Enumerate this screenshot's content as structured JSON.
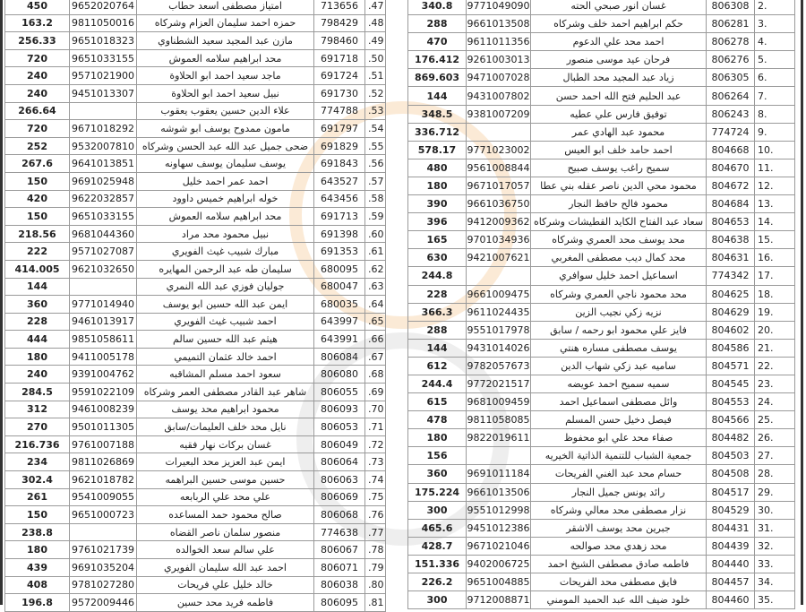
{
  "colors": {
    "border": "#9a9a9a",
    "text": "#222222",
    "watermark": "#f0a040"
  },
  "left_table": {
    "rows": [
      {
        "index": ".47",
        "id": "713656",
        "name": "امتياز مصطفى اسعد حطاب",
        "phone": "9652020764",
        "amount": "450"
      },
      {
        "index": ".48",
        "id": "798429",
        "name": "حمزه احمد سليمان العزام وشركاه",
        "phone": "9811050016",
        "amount": "163.2"
      },
      {
        "index": ".49",
        "id": "798460",
        "name": "مازن عبد المجيد سعيد الشطناوي",
        "phone": "9651018323",
        "amount": "256.33"
      },
      {
        "index": ".50",
        "id": "691718",
        "name": "محد ابراهيم سلامه العموش",
        "phone": "9651033155",
        "amount": "720"
      },
      {
        "index": ".51",
        "id": "691724",
        "name": "ماجد سعيد احمد ابو الحلاوة",
        "phone": "9571021900",
        "amount": "240"
      },
      {
        "index": ".52",
        "id": "691730",
        "name": "نبيل سعيد احمد ابو الحلاوة",
        "phone": "9451013307",
        "amount": "240"
      },
      {
        "index": ".53",
        "id": "774788",
        "name": "علاء الدين حسين يعقوب يعقوب",
        "phone": "",
        "amount": "266.64"
      },
      {
        "index": ".54",
        "id": "691797",
        "name": "مامون ممدوح يوسف ابو شوشه",
        "phone": "9671018292",
        "amount": "720"
      },
      {
        "index": ".55",
        "id": "691829",
        "name": "ضحى جميل عبد الله عبد الحسن وشركاه",
        "phone": "9532007810",
        "amount": "252"
      },
      {
        "index": ".56",
        "id": "691843",
        "name": "يوسف سليمان يوسف سهاونه",
        "phone": "9641013851",
        "amount": "267.6"
      },
      {
        "index": ".57",
        "id": "643527",
        "name": "احمد عمر احمد خليل",
        "phone": "9691025948",
        "amount": "150"
      },
      {
        "index": ".58",
        "id": "643456",
        "name": "خوله ابراهيم خميس داوود",
        "phone": "9622032857",
        "amount": "420"
      },
      {
        "index": ".59",
        "id": "691713",
        "name": "محد ابراهيم سلامه العموش",
        "phone": "9651033155",
        "amount": "150"
      },
      {
        "index": ".60",
        "id": "691398",
        "name": "نبيل محمود محد مراد",
        "phone": "9681044360",
        "amount": "218.56"
      },
      {
        "index": ".61",
        "id": "691353",
        "name": "مبارك شبيب غيث الفويري",
        "phone": "9571027087",
        "amount": "222"
      },
      {
        "index": ".62",
        "id": "680095",
        "name": "سليمان طه عبد الرحمن المهايره",
        "phone": "9621032650",
        "amount": "414.005"
      },
      {
        "index": ".63",
        "id": "680047",
        "name": "جوليان فوزي عبد الله النمري",
        "phone": "",
        "amount": "144"
      },
      {
        "index": ".64",
        "id": "680035",
        "name": "ايمن عبد الله حسين ابو يوسف",
        "phone": "9771014940",
        "amount": "360"
      },
      {
        "index": ".65",
        "id": "643997",
        "name": "احمد شبيب غيث الفويري",
        "phone": "9461013917",
        "amount": "228"
      },
      {
        "index": ".66",
        "id": "643991",
        "name": "هيثم عبد الله حسين سالم",
        "phone": "9851058611",
        "amount": "444"
      },
      {
        "index": ".67",
        "id": "806084",
        "name": "احمد خالد عثمان التميمي",
        "phone": "9411005178",
        "amount": "180"
      },
      {
        "index": ".68",
        "id": "806080",
        "name": "سعود احمد مسلم المشاقبه",
        "phone": "9391004762",
        "amount": "240"
      },
      {
        "index": ".69",
        "id": "806055",
        "name": "شاهر عبد القادر مصطفى العمر وشركاه",
        "phone": "9591022109",
        "amount": "284.5"
      },
      {
        "index": ".70",
        "id": "806093",
        "name": "محمود ابراهيم محد يوسف",
        "phone": "9461008239",
        "amount": "312"
      },
      {
        "index": ".71",
        "id": "806053",
        "name": "نايل محد خلف العليمات/سابق",
        "phone": "9501011305",
        "amount": "270"
      },
      {
        "index": ".72",
        "id": "806049",
        "name": "غسان بركات نهار فقيه",
        "phone": "9761007188",
        "amount": "216.736"
      },
      {
        "index": ".73",
        "id": "806064",
        "name": "ايمن عبد العزيز محد البعيرات",
        "phone": "9811026869",
        "amount": "234"
      },
      {
        "index": ".74",
        "id": "806063",
        "name": "حسين موسى حسين البراهمه",
        "phone": "9621018782",
        "amount": "302.4"
      },
      {
        "index": ".75",
        "id": "806069",
        "name": "علي محد علي الربابعه",
        "phone": "9541009055",
        "amount": "261"
      },
      {
        "index": ".76",
        "id": "806068",
        "name": "صالح محمود حمد المساعده",
        "phone": "9651000723",
        "amount": "150"
      },
      {
        "index": ".77",
        "id": "774638",
        "name": "منصور سلمان ناصر القضاه",
        "phone": "",
        "amount": "238.8"
      },
      {
        "index": ".78",
        "id": "806067",
        "name": "علي سالم سعد الخوالده",
        "phone": "9761021739",
        "amount": "180"
      },
      {
        "index": ".79",
        "id": "806071",
        "name": "احمد عبد الله سليمان الفويري",
        "phone": "9691035204",
        "amount": "439"
      },
      {
        "index": ".80",
        "id": "806038",
        "name": "خالد خليل علي فريحات",
        "phone": "9781027280",
        "amount": "408"
      },
      {
        "index": ".81",
        "id": "806095",
        "name": "فاطمه فريد محد حسين",
        "phone": "9572009446",
        "amount": "196.8"
      }
    ]
  },
  "right_table": {
    "rows": [
      {
        "index": "2.",
        "id": "806308",
        "name": "غسان انور صبحي الحته",
        "phone": "9771049090",
        "amount": "340.8"
      },
      {
        "index": "3.",
        "id": "806281",
        "name": "حكم ابراهيم احمد خلف وشركاه",
        "phone": "9661013508",
        "amount": "288"
      },
      {
        "index": "4.",
        "id": "806278",
        "name": "احمد محد علي الدعوم",
        "phone": "9611011356",
        "amount": "470"
      },
      {
        "index": "5.",
        "id": "806276",
        "name": "فرحان عيد موسى منصور",
        "phone": "9261003013",
        "amount": "176.412"
      },
      {
        "index": "6.",
        "id": "806305",
        "name": "زياد عبد المجيد محد الطبال",
        "phone": "9471007028",
        "amount": "869.603"
      },
      {
        "index": "7.",
        "id": "806264",
        "name": "عبد الحليم فتح الله احمد حسن",
        "phone": "9431007802",
        "amount": "144"
      },
      {
        "index": "8.",
        "id": "806243",
        "name": "توفيق فارس علي عطيه",
        "phone": "9381007209",
        "amount": "348.5"
      },
      {
        "index": "9.",
        "id": "774724",
        "name": "محمود عبد الهادي عمر",
        "phone": "",
        "amount": "336.712"
      },
      {
        "index": "10.",
        "id": "804668",
        "name": "احمد حامد خلف ابو العيس",
        "phone": "9771023002",
        "amount": "578.17"
      },
      {
        "index": "11.",
        "id": "804670",
        "name": "سميح راغب يوسف صبيح",
        "phone": "9561008844",
        "amount": "480"
      },
      {
        "index": "12.",
        "id": "804672",
        "name": "محمود محي الدين ناصر عقله بني عطا",
        "phone": "9671017057",
        "amount": "180"
      },
      {
        "index": "13.",
        "id": "804684",
        "name": "محمود فالح حافظ النجار",
        "phone": "9661036750",
        "amount": "390"
      },
      {
        "index": "14.",
        "id": "804653",
        "name": "سعاد عبد الفتاح الكايد القطيشات وشركاه",
        "phone": "9412009362",
        "amount": "396"
      },
      {
        "index": "15.",
        "id": "804638",
        "name": "محد يوسف محد العمري وشركاه",
        "phone": "9701034936",
        "amount": "165"
      },
      {
        "index": "16.",
        "id": "804631",
        "name": "محد كمال ديب مصطفى المغربي",
        "phone": "9421007621",
        "amount": "630"
      },
      {
        "index": "17.",
        "id": "774342",
        "name": "اسماعيل احمد خليل سوافري",
        "phone": "",
        "amount": "244.8"
      },
      {
        "index": "18.",
        "id": "804625",
        "name": "محد محمود ناجي العمري وشركاه",
        "phone": "9661009475",
        "amount": "228"
      },
      {
        "index": "19.",
        "id": "804629",
        "name": "نزيه زكي نجيب الزين",
        "phone": "9611024435",
        "amount": "366.3"
      },
      {
        "index": "20.",
        "id": "804602",
        "name": "فايز علي محمود ابو رحمه / سابق",
        "phone": "9551017978",
        "amount": "288"
      },
      {
        "index": "21.",
        "id": "804586",
        "name": "يوسف مصطفى مساره هنتي",
        "phone": "9431014026",
        "amount": "144"
      },
      {
        "index": "22.",
        "id": "804571",
        "name": "ساميه عبد زكي شهاب الدين",
        "phone": "9782057673",
        "amount": "612"
      },
      {
        "index": "23.",
        "id": "804545",
        "name": "سميه سميح احمد عويضه",
        "phone": "9772021517",
        "amount": "244.4"
      },
      {
        "index": "24.",
        "id": "804553",
        "name": "وائل مصطفى اسماعيل احمد",
        "phone": "9681009459",
        "amount": "615"
      },
      {
        "index": "25.",
        "id": "804566",
        "name": "فيصل دخيل حسن المسلم",
        "phone": "9811058085",
        "amount": "478"
      },
      {
        "index": "26.",
        "id": "804482",
        "name": "صفاء محد علي ابو محفوظ",
        "phone": "9822019611",
        "amount": "180"
      },
      {
        "index": "27.",
        "id": "804503",
        "name": "جمعية الشباب للتنمية الذاتية الخيريه",
        "phone": "",
        "amount": "156"
      },
      {
        "index": "28.",
        "id": "804508",
        "name": "حسام محد عبد الغني الفريحات",
        "phone": "9691011184",
        "amount": "360"
      },
      {
        "index": "29.",
        "id": "804517",
        "name": "رائد يونس جميل النجار",
        "phone": "9661013506",
        "amount": "175.224"
      },
      {
        "index": "30.",
        "id": "804529",
        "name": "نزار مصطفى محد معالي وشركاه",
        "phone": "9551012998",
        "amount": "300"
      },
      {
        "index": "31.",
        "id": "804431",
        "name": "جبرين محد يوسف الاشقر",
        "phone": "9451012386",
        "amount": "465.6"
      },
      {
        "index": "32.",
        "id": "804439",
        "name": "محد زهدي محد صوالحه",
        "phone": "9671021046",
        "amount": "428.7"
      },
      {
        "index": "33.",
        "id": "804440",
        "name": "فاطمه صادق مصطفى الشيخ احمد",
        "phone": "9402006725",
        "amount": "151.336"
      },
      {
        "index": "34.",
        "id": "804457",
        "name": "فايق مصطفى محد الفريحات",
        "phone": "9651004885",
        "amount": "226.2"
      },
      {
        "index": "35.",
        "id": "804460",
        "name": "خلود ضيف الله عبد الحميد المومني",
        "phone": "9712008871",
        "amount": "300"
      }
    ]
  }
}
